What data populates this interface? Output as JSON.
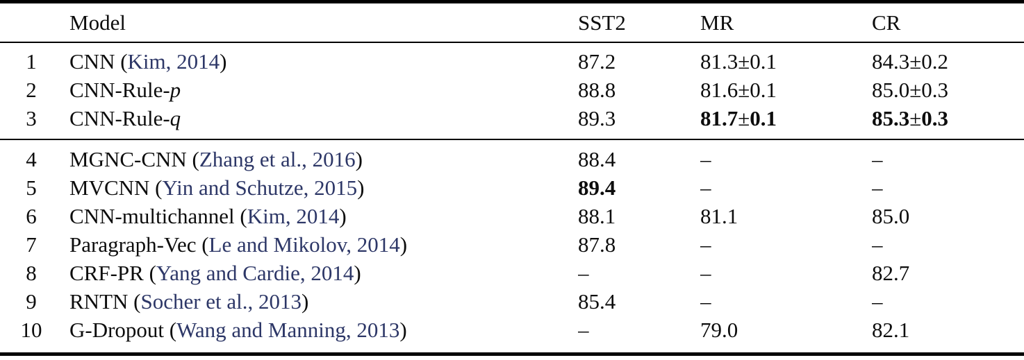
{
  "colors": {
    "citation_link": "#2d3767",
    "text": "#0d0d0d",
    "rule": "#000000"
  },
  "table": {
    "columns": [
      {
        "key": "num",
        "label": ""
      },
      {
        "key": "model",
        "label": "Model"
      },
      {
        "key": "sst2",
        "label": "SST2"
      },
      {
        "key": "mr",
        "label": "MR"
      },
      {
        "key": "cr",
        "label": "CR"
      }
    ],
    "groups": [
      {
        "rows": [
          {
            "num": "1",
            "model": {
              "name": "CNN",
              "cite": "Kim, 2014"
            },
            "sst2": {
              "v": "87.2"
            },
            "mr": {
              "v": "81.3±0.1"
            },
            "cr": {
              "v": "84.3±0.2"
            }
          },
          {
            "num": "2",
            "model": {
              "name": "CNN-Rule-",
              "var": "p"
            },
            "sst2": {
              "v": "88.8"
            },
            "mr": {
              "v": "81.6±0.1"
            },
            "cr": {
              "v": "85.0±0.3"
            }
          },
          {
            "num": "3",
            "model": {
              "name": "CNN-Rule-",
              "var": "q"
            },
            "sst2": {
              "v": "89.3"
            },
            "mr": {
              "v": "81.7±0.1",
              "bold": true
            },
            "cr": {
              "v": "85.3±0.3",
              "bold": true
            }
          }
        ]
      },
      {
        "rows": [
          {
            "num": "4",
            "model": {
              "name": "MGNC-CNN",
              "cite": "Zhang et al., 2016"
            },
            "sst2": {
              "v": "88.4"
            },
            "mr": {
              "v": "–"
            },
            "cr": {
              "v": "–"
            }
          },
          {
            "num": "5",
            "model": {
              "name": "MVCNN",
              "cite": "Yin and Schutze, 2015"
            },
            "sst2": {
              "v": "89.4",
              "bold": true
            },
            "mr": {
              "v": "–"
            },
            "cr": {
              "v": "–"
            }
          },
          {
            "num": "6",
            "model": {
              "name": "CNN-multichannel",
              "cite": "Kim, 2014"
            },
            "sst2": {
              "v": "88.1"
            },
            "mr": {
              "v": "81.1"
            },
            "cr": {
              "v": "85.0"
            }
          },
          {
            "num": "7",
            "model": {
              "name": "Paragraph-Vec",
              "cite": "Le and Mikolov, 2014"
            },
            "sst2": {
              "v": "87.8"
            },
            "mr": {
              "v": "–"
            },
            "cr": {
              "v": "–"
            }
          },
          {
            "num": "8",
            "model": {
              "name": "CRF-PR",
              "cite": "Yang and Cardie, 2014"
            },
            "sst2": {
              "v": "–"
            },
            "mr": {
              "v": "–"
            },
            "cr": {
              "v": "82.7"
            }
          },
          {
            "num": "9",
            "model": {
              "name": "RNTN",
              "cite": "Socher et al., 2013"
            },
            "sst2": {
              "v": "85.4"
            },
            "mr": {
              "v": "–"
            },
            "cr": {
              "v": "–"
            }
          },
          {
            "num": "10",
            "model": {
              "name": "G-Dropout",
              "cite": "Wang and Manning, 2013"
            },
            "sst2": {
              "v": "–"
            },
            "mr": {
              "v": "79.0"
            },
            "cr": {
              "v": "82.1"
            }
          }
        ]
      }
    ]
  }
}
